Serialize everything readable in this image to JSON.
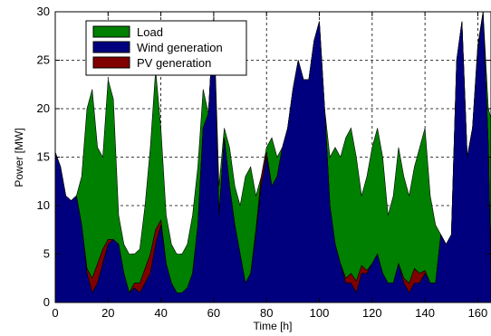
{
  "chart_data": {
    "type": "area",
    "xlabel": "Time [h]",
    "ylabel": "Power [MW]",
    "xlim": [
      0,
      165
    ],
    "ylim": [
      0,
      30
    ],
    "xticks": [
      "0",
      "20",
      "40",
      "60",
      "80",
      "100",
      "120",
      "140",
      "160"
    ],
    "yticks": [
      "0",
      "5",
      "10",
      "15",
      "20",
      "25",
      "30"
    ],
    "grid": true,
    "grid_style": "dashed",
    "legend_position": "top-left",
    "legend": [
      {
        "name": "Load",
        "color": "#008000"
      },
      {
        "name": "Wind generation",
        "color": "#00007f"
      },
      {
        "name": "PV generation",
        "color": "#800000"
      }
    ],
    "x": [
      0,
      2,
      4,
      6,
      8,
      10,
      12,
      14,
      16,
      18,
      20,
      22,
      24,
      26,
      28,
      30,
      32,
      34,
      36,
      38,
      40,
      42,
      44,
      46,
      48,
      50,
      52,
      54,
      56,
      58,
      60,
      62,
      64,
      66,
      68,
      70,
      72,
      74,
      76,
      78,
      80,
      82,
      84,
      86,
      88,
      90,
      92,
      94,
      96,
      98,
      100,
      102,
      104,
      106,
      108,
      110,
      112,
      114,
      116,
      118,
      120,
      122,
      124,
      126,
      128,
      130,
      132,
      134,
      136,
      138,
      140,
      142,
      144,
      146,
      148,
      150,
      152,
      154,
      156,
      158,
      160,
      162,
      164,
      165
    ],
    "series": [
      {
        "name": "Wind generation",
        "values": [
          15.5,
          14,
          11,
          10.5,
          11,
          8,
          3,
          1,
          2,
          4,
          6,
          6.5,
          6,
          3,
          1,
          1.5,
          1,
          2,
          3,
          6,
          8,
          4,
          2,
          1,
          1,
          1.5,
          3,
          8,
          18,
          19.5,
          29.5,
          9,
          17,
          12,
          8,
          5,
          2,
          3,
          7,
          12,
          15,
          12,
          13,
          16,
          18,
          22,
          25,
          23,
          23,
          27,
          29,
          20,
          10,
          6,
          4,
          2,
          2,
          1,
          3,
          3,
          4,
          5,
          3,
          2,
          2,
          4,
          2,
          1,
          2,
          2,
          3,
          2,
          2,
          7,
          6,
          7,
          25,
          29,
          15,
          18,
          26,
          30,
          16,
          2
        ]
      },
      {
        "name": "PV generation",
        "values": [
          0,
          0,
          0,
          0,
          0,
          0,
          0.5,
          1.5,
          2,
          1.5,
          0.5,
          0,
          0,
          0,
          0,
          0.5,
          1,
          1.5,
          2,
          1.5,
          0.5,
          0,
          0,
          0,
          0,
          0,
          0,
          0,
          0,
          0,
          0,
          0,
          0,
          0,
          0,
          0,
          0,
          0,
          0.5,
          1,
          0.5,
          0,
          0,
          0,
          0,
          0,
          0,
          0,
          0,
          0,
          0,
          0,
          0,
          0,
          0,
          0.5,
          1,
          1.2,
          0.8,
          0.3,
          0,
          0,
          0,
          0,
          0,
          0,
          0.5,
          1,
          1.5,
          1,
          0.3,
          0,
          0,
          0,
          0,
          0,
          0,
          0,
          0,
          0,
          0.5,
          1.5,
          0,
          0
        ]
      },
      {
        "name": "Load",
        "values": [
          15.5,
          14,
          11,
          10.5,
          11,
          13,
          20,
          22,
          16,
          15,
          23,
          21,
          9,
          6,
          5,
          5,
          5.5,
          10,
          16,
          24,
          18,
          9,
          6,
          5,
          5,
          6,
          9,
          14,
          22,
          19.5,
          29.5,
          12,
          18,
          16,
          12,
          10,
          13,
          14,
          11,
          13,
          16,
          17,
          15,
          16,
          18,
          22,
          25,
          23,
          23,
          27,
          29,
          20,
          15,
          16,
          15,
          17,
          18,
          15,
          11,
          13,
          16,
          18,
          15,
          9,
          11,
          16,
          13,
          11,
          14,
          16,
          18,
          11,
          8,
          7,
          6,
          7,
          25,
          29,
          15,
          18,
          26,
          30,
          20,
          19
        ]
      }
    ]
  }
}
